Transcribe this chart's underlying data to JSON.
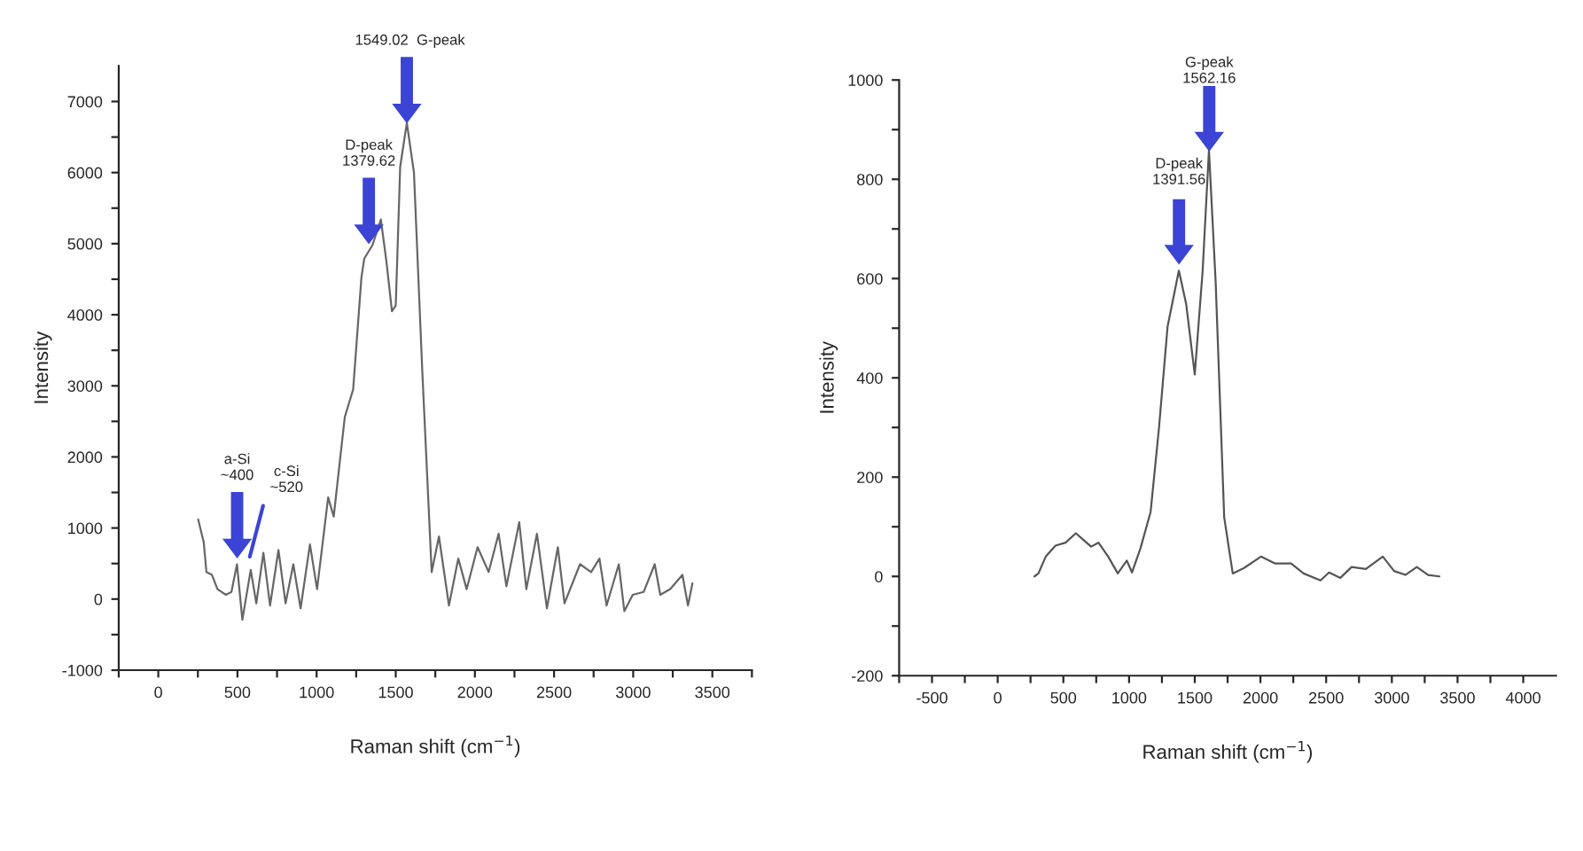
{
  "chart_data": [
    {
      "type": "line",
      "xlabel": "Raman shift (cm$^{−1}$)",
      "ylabel": "Intensity",
      "xlim": [
        -250,
        3750
      ],
      "ylim": [
        -1000,
        7500
      ],
      "xticks": [
        {
          "value": -250,
          "label": null
        },
        0,
        {
          "value": 250,
          "label": null
        },
        500,
        {
          "value": 750,
          "label": null
        },
        1000,
        {
          "value": 1250,
          "label": null
        },
        1500,
        {
          "value": 1750,
          "label": null
        },
        2000,
        {
          "value": 2250,
          "label": null
        },
        2500,
        {
          "value": 2750,
          "label": null
        },
        3000,
        {
          "value": 3250,
          "label": null
        },
        3500,
        {
          "value": 3750,
          "label": null
        }
      ],
      "yticks": [
        -1000,
        {
          "value": -500,
          "label": null
        },
        0,
        {
          "value": 500,
          "label": null
        },
        1000,
        {
          "value": 1500,
          "label": null
        },
        2000,
        {
          "value": 2500,
          "label": null
        },
        3000,
        {
          "value": 3500,
          "label": null
        },
        4000,
        {
          "value": 4500,
          "label": null
        },
        5000,
        {
          "value": 5500,
          "label": null
        },
        6000,
        {
          "value": 6500,
          "label": null
        },
        7000
      ],
      "grid": false,
      "legend": false,
      "marker": "none",
      "line_style": "solid",
      "series": [
        {
          "color": "#666666",
          "x": [
            252,
            287,
            304,
            339,
            374,
            427,
            462,
            497,
            531,
            584,
            619,
            664,
            706,
            759,
            804,
            853,
            899,
            958,
            1003,
            1073,
            1108,
            1178,
            1231,
            1283,
            1301,
            1353,
            1406,
            1441,
            1476,
            1500,
            1528,
            1570,
            1615,
            1668,
            1727,
            1773,
            1836,
            1895,
            1948,
            2017,
            2087,
            2150,
            2199,
            2280,
            2325,
            2392,
            2455,
            2524,
            2566,
            2664,
            2734,
            2787,
            2832,
            2909,
            2944,
            2997,
            3066,
            3136,
            3171,
            3234,
            3311,
            3346,
            3374
          ],
          "values": [
            1120,
            800,
            380,
            340,
            140,
            60,
            100,
            490,
            -290,
            410,
            -60,
            650,
            -90,
            690,
            -60,
            490,
            -130,
            770,
            140,
            1430,
            1160,
            2560,
            2950,
            4520,
            4790,
            4980,
            5340,
            4750,
            4050,
            4130,
            6080,
            6700,
            6000,
            3190,
            380,
            880,
            -90,
            570,
            140,
            730,
            380,
            920,
            180,
            1080,
            140,
            920,
            -130,
            730,
            -60,
            490,
            380,
            570,
            -90,
            490,
            -170,
            60,
            100,
            490,
            60,
            140,
            340,
            -90,
            220
          ]
        }
      ],
      "annotations": [
        "a-Si\n~400",
        "c-Si\n~520",
        "D-peak\n1379.62",
        "1549.02  G-peak"
      ]
    },
    {
      "type": "line",
      "xlabel": "Raman shift (cm$^{−1}$)",
      "ylabel": "Intensity",
      "xlim": [
        -750,
        4250
      ],
      "ylim": [
        -200,
        1000
      ],
      "xticks": [
        {
          "value": -750,
          "label": null
        },
        -500,
        {
          "value": -250,
          "label": null
        },
        0,
        {
          "value": 250,
          "label": null
        },
        500,
        {
          "value": 750,
          "label": null
        },
        1000,
        {
          "value": 1250,
          "label": null
        },
        1500,
        {
          "value": 1750,
          "label": null
        },
        2000,
        {
          "value": 2250,
          "label": null
        },
        2500,
        {
          "value": 2750,
          "label": null
        },
        3000,
        {
          "value": 3250,
          "label": null
        },
        3500,
        {
          "value": 3750,
          "label": null
        },
        4000
      ],
      "yticks": [
        -200,
        {
          "value": -100,
          "label": null
        },
        0,
        {
          "value": 100,
          "label": null
        },
        200,
        {
          "value": 300,
          "label": null
        },
        400,
        {
          "value": 500,
          "label": null
        },
        600,
        {
          "value": 700,
          "label": null
        },
        800,
        {
          "value": 900,
          "label": null
        },
        1000
      ],
      "grid": false,
      "legend": false,
      "marker": "none",
      "line_style": "solid",
      "series": [
        {
          "color": "#555555",
          "x": [
            280,
            310,
            366,
            440,
            517,
            595,
            655,
            711,
            767,
            841,
            914,
            983,
            1022,
            1086,
            1164,
            1228,
            1293,
            1379,
            1435,
            1500,
            1560,
            1608,
            1659,
            1724,
            1789,
            1875,
            2004,
            2112,
            2233,
            2328,
            2457,
            2522,
            2608,
            2694,
            2802,
            2931,
            3017,
            3103,
            3190,
            3276,
            3362
          ],
          "values": [
            0,
            6,
            40,
            62,
            68,
            87,
            73,
            60,
            68,
            40,
            6,
            32,
            8,
            56,
            130,
            300,
            503,
            616,
            548,
            407,
            616,
            859,
            593,
            119,
            6,
            17,
            40,
            26,
            26,
            6,
            -8,
            8,
            -3,
            19,
            15,
            40,
            11,
            3,
            19,
            3,
            0
          ]
        }
      ],
      "annotations": [
        "D-peak\n1391.56",
        "G-peak\n1562.16"
      ]
    }
  ]
}
